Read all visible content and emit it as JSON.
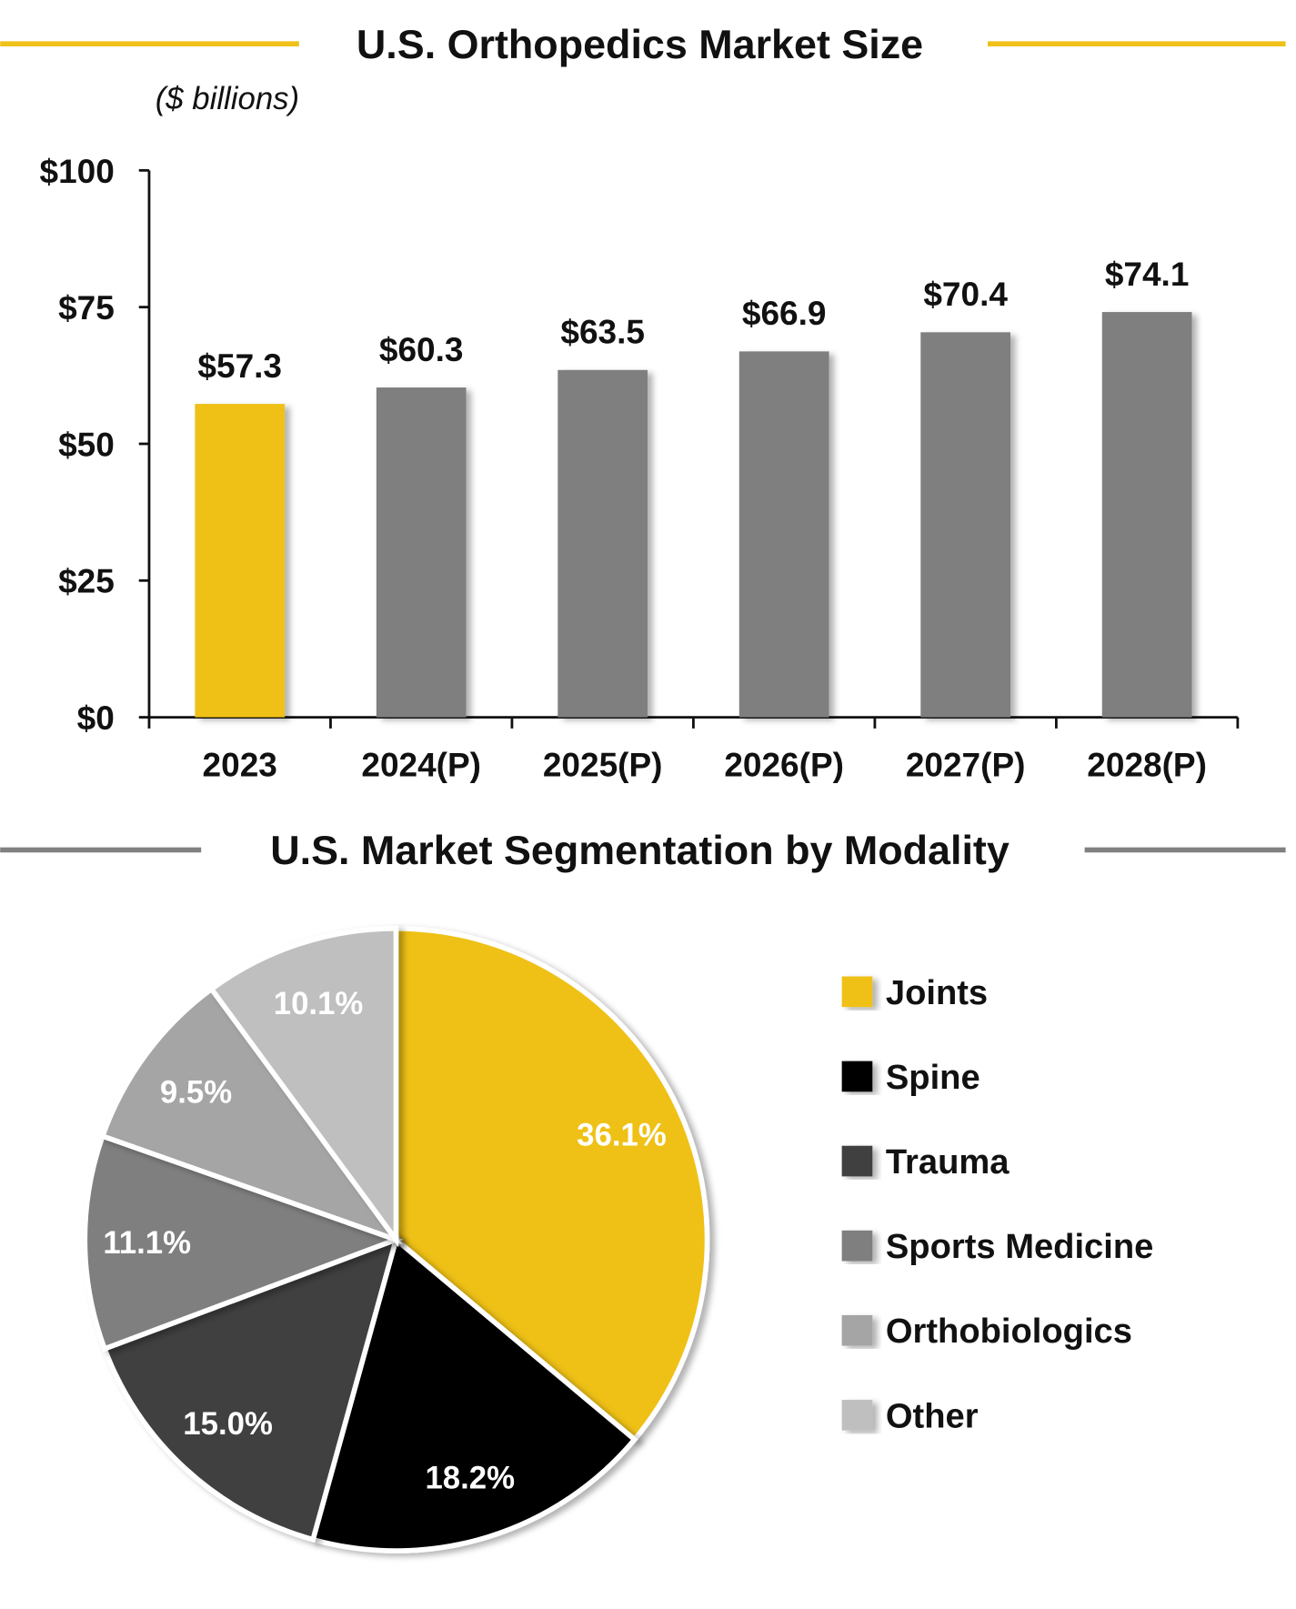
{
  "chart_data": [
    {
      "type": "bar",
      "title": "U.S. Orthopedics Market Size",
      "subtitle": "($ billions)",
      "categories": [
        "2023",
        "2024(P)",
        "2025(P)",
        "2026(P)",
        "2027(P)",
        "2028(P)"
      ],
      "values": [
        57.3,
        60.3,
        63.5,
        66.9,
        70.4,
        74.1
      ],
      "data_labels": [
        "$57.3",
        "$60.3",
        "$63.5",
        "$66.9",
        "$70.4",
        "$74.1"
      ],
      "ylim": [
        0,
        100
      ],
      "yticks": [
        0,
        25,
        50,
        75,
        100
      ],
      "ytick_labels": [
        "$0",
        "$25",
        "$50",
        "$75",
        "$100"
      ],
      "grid": false,
      "colors": [
        "#EFC119",
        "#7F7F7F",
        "#7F7F7F",
        "#7F7F7F",
        "#7F7F7F",
        "#7F7F7F"
      ],
      "title_rule_color": "#EFC119"
    },
    {
      "type": "pie",
      "title": "U.S. Market Segmentation by Modality",
      "legend_position": "right",
      "title_rule_color": "#808080",
      "slices": [
        {
          "name": "Joints",
          "value": 36.1,
          "label": "36.1%",
          "color": "#EFC119",
          "label_color": "#FFFFFF"
        },
        {
          "name": "Spine",
          "value": 18.2,
          "label": "18.2%",
          "color": "#000000",
          "label_color": "#FFFFFF"
        },
        {
          "name": "Trauma",
          "value": 15.0,
          "label": "15.0%",
          "color": "#404040",
          "label_color": "#FFFFFF"
        },
        {
          "name": "Sports Medicine",
          "value": 11.1,
          "label": "11.1%",
          "color": "#7F7F7F",
          "label_color": "#FFFFFF"
        },
        {
          "name": "Orthobiologics",
          "value": 9.5,
          "label": "9.5%",
          "color": "#A5A5A5",
          "label_color": "#FFFFFF"
        },
        {
          "name": "Other",
          "value": 10.1,
          "label": "10.1%",
          "color": "#BFBFBF",
          "label_color": "#FFFFFF"
        }
      ]
    }
  ]
}
